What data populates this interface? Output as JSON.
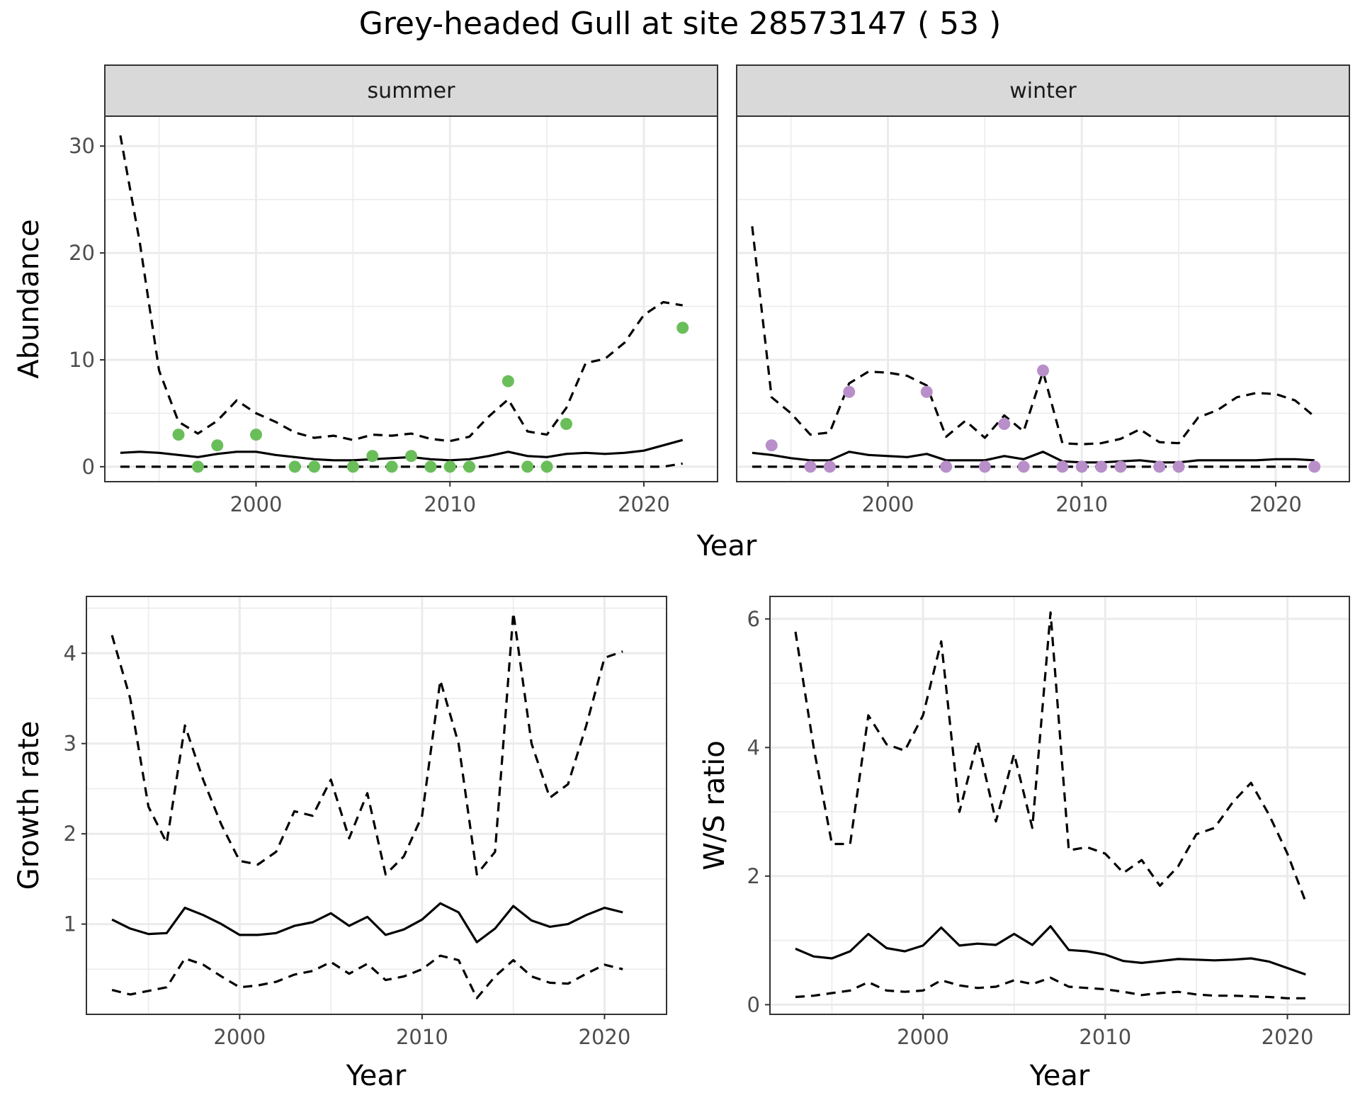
{
  "title": "Grey-headed Gull at site 28573147 ( 53 )",
  "colors": {
    "summer_points": "#6ABE5A",
    "winter_points": "#B88FC9",
    "lines": "#000000",
    "grid": "#EBEBEB",
    "strip_bg": "#D9D9D9"
  },
  "chart_data": [
    {
      "type": "line",
      "facet": "summer",
      "xlabel": "Year",
      "ylabel": "Abundance",
      "xlim": [
        1992.2,
        2023.8
      ],
      "ylim": [
        -1.4,
        32.8
      ],
      "xticks": [
        2000,
        2010,
        2020
      ],
      "yticks": [
        0,
        10,
        20,
        30
      ],
      "x": [
        1993,
        1994,
        1995,
        1996,
        1997,
        1998,
        1999,
        2000,
        2001,
        2002,
        2003,
        2004,
        2005,
        2006,
        2007,
        2008,
        2009,
        2010,
        2011,
        2012,
        2013,
        2014,
        2015,
        2016,
        2017,
        2018,
        2019,
        2020,
        2021,
        2022
      ],
      "series": [
        {
          "role": "estimate",
          "dash": "solid",
          "values": [
            1.3,
            1.4,
            1.3,
            1.1,
            0.9,
            1.2,
            1.4,
            1.4,
            1.1,
            0.9,
            0.7,
            0.6,
            0.6,
            0.7,
            0.8,
            0.9,
            0.7,
            0.6,
            0.7,
            1.0,
            1.4,
            1.0,
            0.9,
            1.2,
            1.3,
            1.2,
            1.3,
            1.5,
            2.0,
            2.5
          ]
        },
        {
          "role": "upper",
          "dash": "dashed",
          "values": [
            31.0,
            21.0,
            9.0,
            4.2,
            3.1,
            4.3,
            6.2,
            5.0,
            4.2,
            3.2,
            2.7,
            2.9,
            2.5,
            3.0,
            2.9,
            3.1,
            2.6,
            2.4,
            2.8,
            4.7,
            6.3,
            3.3,
            3.0,
            5.5,
            9.7,
            10.1,
            11.6,
            14.2,
            15.4,
            15.1
          ]
        },
        {
          "role": "lower",
          "dash": "dashed",
          "values": [
            0,
            0,
            0,
            0,
            0,
            0,
            0,
            0,
            0,
            0,
            0,
            0,
            0,
            0,
            0,
            0,
            0,
            0,
            0,
            0,
            0,
            0,
            0,
            0,
            0,
            0,
            0,
            0,
            0,
            0.3
          ]
        }
      ],
      "points": {
        "x": [
          1996,
          1997,
          1998,
          2000,
          2002,
          2003,
          2005,
          2006,
          2007,
          2008,
          2009,
          2010,
          2011,
          2013,
          2014,
          2015,
          2016,
          2022
        ],
        "y": [
          3,
          0,
          2,
          3,
          0,
          0,
          0,
          1,
          0,
          1,
          0,
          0,
          0,
          8,
          0,
          0,
          4,
          13
        ]
      }
    },
    {
      "type": "line",
      "facet": "winter",
      "xlabel": "Year",
      "ylabel": "Abundance",
      "xlim": [
        1992.2,
        2023.8
      ],
      "ylim": [
        -1.4,
        32.8
      ],
      "xticks": [
        2000,
        2010,
        2020
      ],
      "yticks": [
        0,
        10,
        20,
        30
      ],
      "x": [
        1993,
        1994,
        1995,
        1996,
        1997,
        1998,
        1999,
        2000,
        2001,
        2002,
        2003,
        2004,
        2005,
        2006,
        2007,
        2008,
        2009,
        2010,
        2011,
        2012,
        2013,
        2014,
        2015,
        2016,
        2017,
        2018,
        2019,
        2020,
        2021,
        2022
      ],
      "series": [
        {
          "role": "estimate",
          "dash": "solid",
          "values": [
            1.3,
            1.1,
            0.8,
            0.6,
            0.6,
            1.4,
            1.1,
            1.0,
            0.9,
            1.2,
            0.6,
            0.6,
            0.6,
            1.0,
            0.7,
            1.4,
            0.5,
            0.4,
            0.4,
            0.5,
            0.6,
            0.4,
            0.4,
            0.6,
            0.6,
            0.6,
            0.6,
            0.7,
            0.7,
            0.6
          ]
        },
        {
          "role": "upper",
          "dash": "dashed",
          "values": [
            22.5,
            6.5,
            5.0,
            3.0,
            3.2,
            7.8,
            8.9,
            8.8,
            8.5,
            7.6,
            2.8,
            4.3,
            2.7,
            4.8,
            3.3,
            8.9,
            2.2,
            2.1,
            2.2,
            2.6,
            3.5,
            2.3,
            2.2,
            4.6,
            5.3,
            6.5,
            6.9,
            6.8,
            6.2,
            4.7
          ]
        },
        {
          "role": "lower",
          "dash": "dashed",
          "values": [
            0,
            0,
            0,
            0,
            0,
            0,
            0,
            0,
            0,
            0,
            0,
            0,
            0,
            0,
            0,
            0,
            0,
            0,
            0,
            0,
            0,
            0,
            0,
            0,
            0,
            0,
            0,
            0,
            0,
            0
          ]
        }
      ],
      "points": {
        "x": [
          1994,
          1996,
          1997,
          1998,
          2002,
          2003,
          2005,
          2006,
          2007,
          2008,
          2009,
          2010,
          2011,
          2012,
          2014,
          2015,
          2022
        ],
        "y": [
          2,
          0,
          0,
          7,
          7,
          0,
          0,
          4,
          0,
          9,
          0,
          0,
          0,
          0,
          0,
          0,
          0
        ]
      }
    },
    {
      "type": "line",
      "xlabel": "Year",
      "ylabel": "Growth rate",
      "xlim": [
        1991.6,
        2023.4
      ],
      "ylim": [
        0.0,
        4.63
      ],
      "xticks": [
        2000,
        2010,
        2020
      ],
      "yticks": [
        1,
        2,
        3,
        4
      ],
      "x": [
        1993,
        1994,
        1995,
        1996,
        1997,
        1998,
        1999,
        2000,
        2001,
        2002,
        2003,
        2004,
        2005,
        2006,
        2007,
        2008,
        2009,
        2010,
        2011,
        2012,
        2013,
        2014,
        2015,
        2016,
        2017,
        2018,
        2019,
        2020,
        2021
      ],
      "series": [
        {
          "role": "estimate",
          "dash": "solid",
          "values": [
            1.05,
            0.95,
            0.89,
            0.9,
            1.18,
            1.1,
            1.0,
            0.88,
            0.88,
            0.9,
            0.98,
            1.02,
            1.12,
            0.98,
            1.08,
            0.88,
            0.94,
            1.05,
            1.23,
            1.13,
            0.8,
            0.95,
            1.2,
            1.04,
            0.97,
            1.0,
            1.1,
            1.18,
            1.13
          ]
        },
        {
          "role": "upper",
          "dash": "dashed",
          "values": [
            4.2,
            3.5,
            2.3,
            1.9,
            3.2,
            2.6,
            2.1,
            1.7,
            1.66,
            1.8,
            2.25,
            2.2,
            2.6,
            1.95,
            2.45,
            1.55,
            1.75,
            2.2,
            3.7,
            3.0,
            1.55,
            1.8,
            4.45,
            3.0,
            2.4,
            2.55,
            3.2,
            3.95,
            4.02
          ]
        },
        {
          "role": "lower",
          "dash": "dashed",
          "values": [
            0.27,
            0.22,
            0.26,
            0.3,
            0.62,
            0.55,
            0.42,
            0.3,
            0.32,
            0.36,
            0.44,
            0.48,
            0.58,
            0.45,
            0.56,
            0.38,
            0.42,
            0.5,
            0.65,
            0.6,
            0.18,
            0.42,
            0.6,
            0.42,
            0.35,
            0.34,
            0.45,
            0.55,
            0.5
          ]
        }
      ]
    },
    {
      "type": "line",
      "xlabel": "Year",
      "ylabel": "W/S ratio",
      "xlim": [
        1991.6,
        2023.4
      ],
      "ylim": [
        -0.15,
        6.35
      ],
      "xticks": [
        2000,
        2010,
        2020
      ],
      "yticks": [
        0,
        2,
        4,
        6
      ],
      "x": [
        1993,
        1994,
        1995,
        1996,
        1997,
        1998,
        1999,
        2000,
        2001,
        2002,
        2003,
        2004,
        2005,
        2006,
        2007,
        2008,
        2009,
        2010,
        2011,
        2012,
        2013,
        2014,
        2015,
        2016,
        2017,
        2018,
        2019,
        2020,
        2021
      ],
      "series": [
        {
          "role": "estimate",
          "dash": "solid",
          "values": [
            0.87,
            0.75,
            0.72,
            0.83,
            1.1,
            0.88,
            0.83,
            0.92,
            1.2,
            0.92,
            0.95,
            0.93,
            1.1,
            0.93,
            1.22,
            0.85,
            0.83,
            0.78,
            0.68,
            0.65,
            0.68,
            0.71,
            0.7,
            0.69,
            0.7,
            0.72,
            0.67,
            0.57,
            0.47
          ]
        },
        {
          "role": "upper",
          "dash": "dashed",
          "values": [
            5.8,
            4.0,
            2.5,
            2.5,
            4.5,
            4.05,
            3.95,
            4.5,
            5.65,
            3.0,
            4.1,
            2.85,
            3.9,
            2.75,
            6.1,
            2.4,
            2.45,
            2.35,
            2.05,
            2.25,
            1.85,
            2.15,
            2.65,
            2.75,
            3.15,
            3.45,
            2.95,
            2.35,
            1.6
          ]
        },
        {
          "role": "lower",
          "dash": "dashed",
          "values": [
            0.12,
            0.14,
            0.18,
            0.22,
            0.35,
            0.22,
            0.2,
            0.22,
            0.38,
            0.3,
            0.26,
            0.28,
            0.38,
            0.32,
            0.42,
            0.28,
            0.26,
            0.24,
            0.2,
            0.15,
            0.18,
            0.2,
            0.16,
            0.14,
            0.14,
            0.13,
            0.12,
            0.1,
            0.1
          ]
        }
      ]
    }
  ]
}
